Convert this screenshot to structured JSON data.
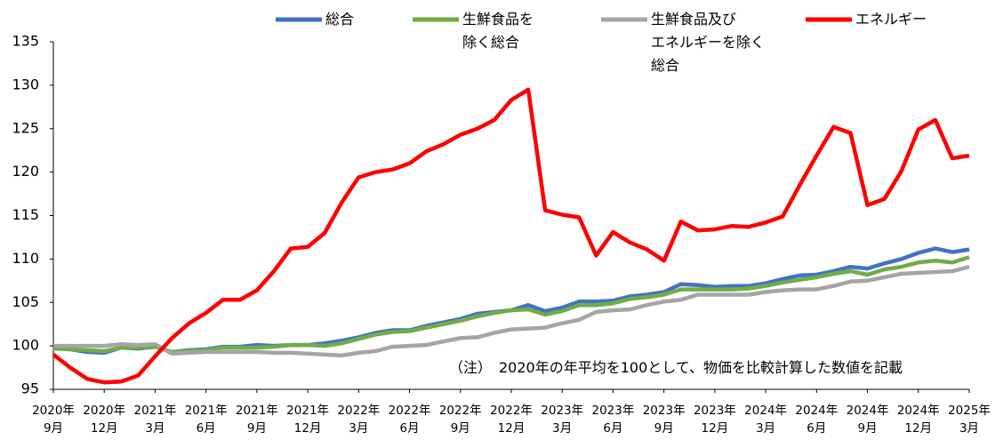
{
  "chart_data": {
    "type": "line",
    "annotation": "（注）　2020年の年平均を100として、物価を比較計算した数値を記載",
    "categories": [
      "2020年\n9月",
      null,
      null,
      "2020年\n12月",
      null,
      null,
      "2021年\n3月",
      null,
      null,
      "2021年\n6月",
      null,
      null,
      "2021年\n9月",
      null,
      null,
      "2021年\n12月",
      null,
      null,
      "2022年\n3月",
      null,
      null,
      "2022年\n6月",
      null,
      null,
      "2022年\n9月",
      null,
      null,
      "2022年\n12月",
      null,
      null,
      "2023年\n3月",
      null,
      null,
      "2023年\n6月",
      null,
      null,
      "2023年\n9月",
      null,
      null,
      "2023年\n12月",
      null,
      null,
      "2024年\n3月",
      null,
      null,
      "2024年\n6月",
      null,
      null,
      "2024年\n9月",
      null,
      null,
      "2024年\n12月",
      null,
      null,
      "2025年\n3月"
    ],
    "ylim": [
      95,
      135
    ],
    "yticks": [
      95,
      100,
      105,
      110,
      115,
      120,
      125,
      130,
      135
    ],
    "grid": false,
    "series": [
      {
        "name": "総合",
        "color": "#4472c4",
        "values": [
          99.9,
          99.6,
          99.3,
          99.2,
          99.8,
          99.7,
          99.9,
          99.3,
          99.5,
          99.6,
          99.9,
          99.9,
          100.1,
          100.0,
          100.1,
          100.1,
          100.3,
          100.6,
          101.0,
          101.5,
          101.8,
          101.8,
          102.3,
          102.7,
          103.1,
          103.7,
          103.9,
          104.1,
          104.7,
          104.0,
          104.4,
          105.1,
          105.1,
          105.2,
          105.7,
          105.9,
          106.2,
          107.1,
          107.0,
          106.8,
          106.9,
          106.9,
          107.2,
          107.7,
          108.1,
          108.2,
          108.6,
          109.1,
          108.9,
          109.5,
          110.0,
          110.7,
          111.2,
          110.8,
          111.1
        ]
      },
      {
        "name": "生鮮食品を\n除く総合",
        "color": "#70ad47",
        "values": [
          99.7,
          99.6,
          99.5,
          99.4,
          99.8,
          99.8,
          99.9,
          99.3,
          99.4,
          99.5,
          99.8,
          99.8,
          99.8,
          99.9,
          100.1,
          100.1,
          100.0,
          100.3,
          100.8,
          101.3,
          101.6,
          101.7,
          102.1,
          102.5,
          102.9,
          103.4,
          103.8,
          104.1,
          104.2,
          103.6,
          104.0,
          104.7,
          104.7,
          104.9,
          105.4,
          105.6,
          105.9,
          106.5,
          106.5,
          106.5,
          106.5,
          106.6,
          106.9,
          107.3,
          107.6,
          107.9,
          108.3,
          108.6,
          108.2,
          108.8,
          109.1,
          109.6,
          109.8,
          109.6,
          110.2
        ]
      },
      {
        "name": "生鮮食品及び\nエネルギーを除く\n総合",
        "color": "#a5a5a5",
        "values": [
          100.0,
          100.0,
          100.0,
          100.0,
          100.2,
          100.1,
          100.2,
          99.1,
          99.2,
          99.3,
          99.3,
          99.3,
          99.3,
          99.2,
          99.2,
          99.1,
          99.0,
          98.9,
          99.2,
          99.4,
          99.9,
          100.0,
          100.1,
          100.5,
          100.9,
          101.0,
          101.5,
          101.9,
          102.0,
          102.1,
          102.6,
          103.0,
          103.9,
          104.1,
          104.2,
          104.7,
          105.1,
          105.3,
          105.9,
          105.9,
          105.9,
          105.9,
          106.2,
          106.4,
          106.5,
          106.5,
          106.9,
          107.4,
          107.5,
          107.9,
          108.3,
          108.4,
          108.5,
          108.6,
          109.1
        ]
      },
      {
        "name": "エネルギー",
        "color": "#ff0000",
        "values": [
          99.0,
          97.5,
          96.2,
          95.8,
          95.9,
          96.6,
          98.8,
          100.9,
          102.6,
          103.8,
          105.3,
          105.3,
          106.4,
          108.6,
          111.2,
          111.4,
          113.0,
          116.5,
          119.4,
          120.0,
          120.3,
          121.0,
          122.4,
          123.2,
          124.3,
          125.0,
          126.0,
          128.3,
          129.5,
          115.6,
          115.1,
          114.8,
          110.4,
          113.1,
          111.9,
          111.1,
          109.8,
          114.3,
          113.3,
          113.4,
          113.8,
          113.7,
          114.2,
          114.9,
          118.5,
          121.9,
          125.2,
          124.5,
          116.2,
          116.9,
          120.1,
          124.9,
          126.0,
          121.6,
          121.9
        ]
      }
    ]
  }
}
